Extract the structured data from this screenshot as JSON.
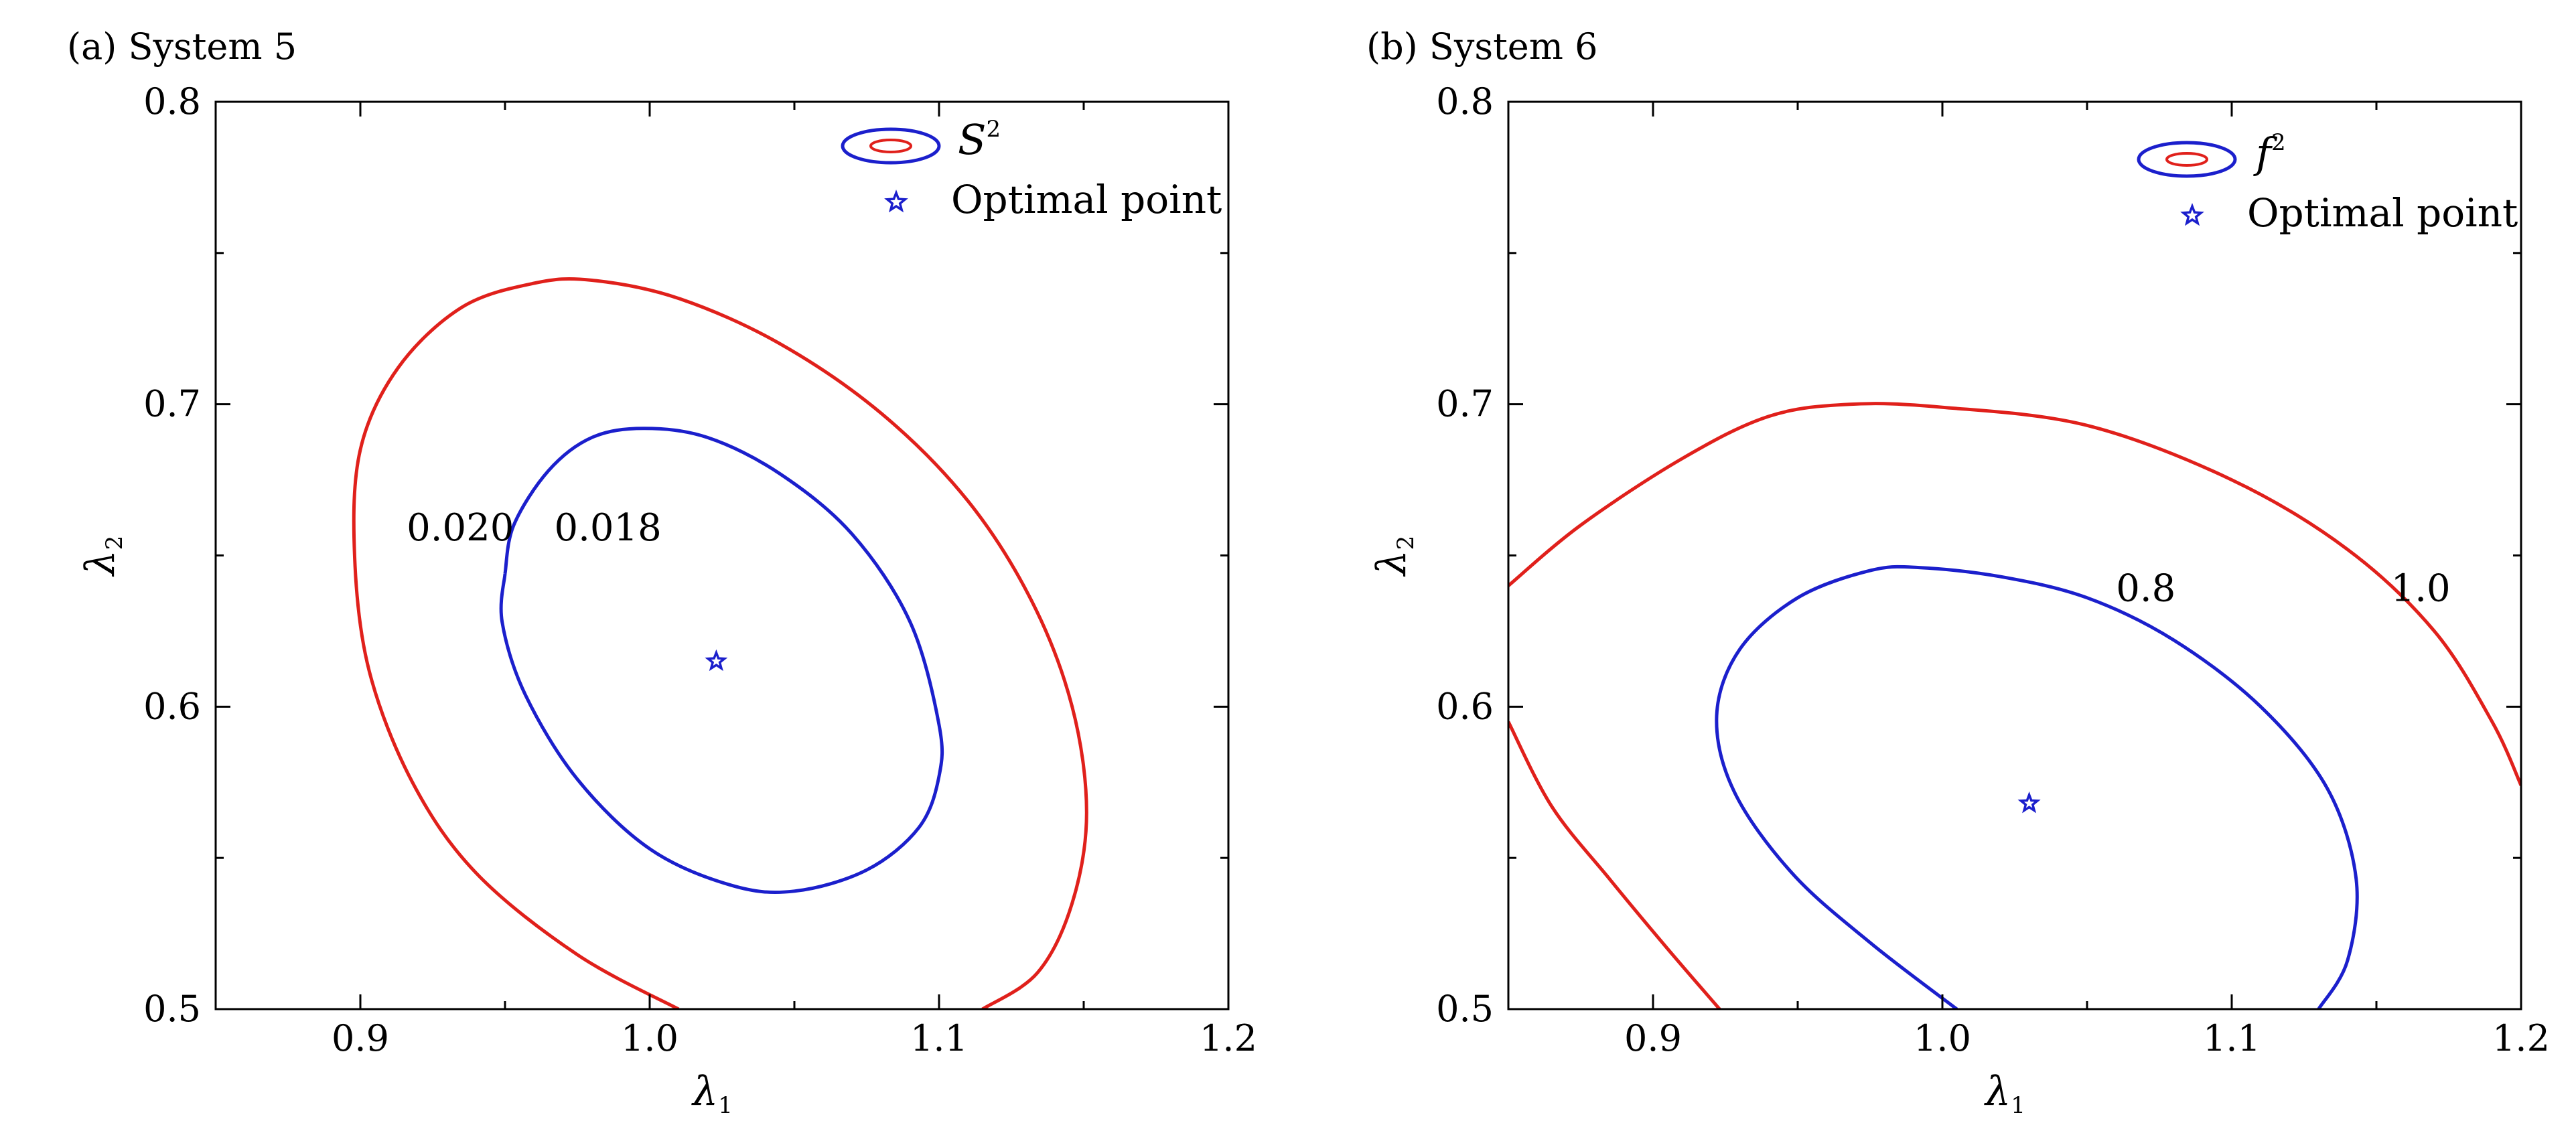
{
  "chart_data": [
    {
      "type": "contour",
      "panel_label": "(a)",
      "title": "System 5",
      "xlabel": "λ",
      "xlabel_sub": "1",
      "ylabel": "λ",
      "ylabel_sub": "2",
      "xlim": [
        0.85,
        1.2
      ],
      "ylim": [
        0.5,
        0.8
      ],
      "xticks": [
        0.9,
        1.0,
        1.1,
        1.2
      ],
      "xtick_labels": [
        "0.9",
        "1.0",
        "1.1",
        "1.2"
      ],
      "yticks": [
        0.5,
        0.6,
        0.7,
        0.8
      ],
      "ytick_labels": [
        "0.5",
        "0.6",
        "0.7",
        "0.8"
      ],
      "legend": {
        "position": "top-right",
        "contour_symbol": "S",
        "contour_symbol_sup": "2",
        "optimal_label": "Optimal point"
      },
      "optimal_point": {
        "x": 1.023,
        "y": 0.615
      },
      "contours": [
        {
          "level": "0.020",
          "color": "#e0201b",
          "label_at": {
            "x": 0.916,
            "y": 0.655
          },
          "points": [
            [
              1.01,
              0.5
            ],
            [
              0.975,
              0.518
            ],
            [
              0.94,
              0.545
            ],
            [
              0.918,
              0.575
            ],
            [
              0.903,
              0.612
            ],
            [
              0.898,
              0.65
            ],
            [
              0.9,
              0.685
            ],
            [
              0.913,
              0.712
            ],
            [
              0.935,
              0.732
            ],
            [
              0.96,
              0.74
            ],
            [
              0.98,
              0.741
            ],
            [
              1.01,
              0.735
            ],
            [
              1.045,
              0.72
            ],
            [
              1.08,
              0.697
            ],
            [
              1.11,
              0.668
            ],
            [
              1.132,
              0.635
            ],
            [
              1.146,
              0.6
            ],
            [
              1.151,
              0.565
            ],
            [
              1.146,
              0.535
            ],
            [
              1.134,
              0.512
            ],
            [
              1.115,
              0.5
            ]
          ]
        },
        {
          "level": "0.018",
          "color": "#1b1fcc",
          "label_at": {
            "x": 0.967,
            "y": 0.655
          },
          "points": [
            [
              0.95,
              0.644
            ],
            [
              0.953,
              0.66
            ],
            [
              0.965,
              0.678
            ],
            [
              0.98,
              0.689
            ],
            [
              0.998,
              0.692
            ],
            [
              1.02,
              0.689
            ],
            [
              1.045,
              0.677
            ],
            [
              1.07,
              0.657
            ],
            [
              1.09,
              0.628
            ],
            [
              1.1,
              0.594
            ],
            [
              1.1,
              0.577
            ],
            [
              1.093,
              0.56
            ],
            [
              1.075,
              0.546
            ],
            [
              1.05,
              0.539
            ],
            [
              1.028,
              0.541
            ],
            [
              1.0,
              0.553
            ],
            [
              0.975,
              0.576
            ],
            [
              0.957,
              0.604
            ],
            [
              0.949,
              0.628
            ],
            [
              0.95,
              0.644
            ]
          ]
        }
      ]
    },
    {
      "type": "contour",
      "panel_label": "(b)",
      "title": "System 6",
      "xlabel": "λ",
      "xlabel_sub": "1",
      "ylabel": "λ",
      "ylabel_sub": "2",
      "xlim": [
        0.85,
        1.2
      ],
      "ylim": [
        0.5,
        0.8
      ],
      "xticks": [
        0.9,
        1.0,
        1.1,
        1.2
      ],
      "xtick_labels": [
        "0.9",
        "1.0",
        "1.1",
        "1.2"
      ],
      "yticks": [
        0.5,
        0.6,
        0.7,
        0.8
      ],
      "ytick_labels": [
        "0.5",
        "0.6",
        "0.7",
        "0.8"
      ],
      "legend": {
        "position": "top-right",
        "contour_symbol": "f",
        "contour_symbol_sup": "2",
        "optimal_label": "Optimal point"
      },
      "optimal_point": {
        "x": 1.03,
        "y": 0.568
      },
      "contours": [
        {
          "level": "0.8",
          "color": "#1b1fcc",
          "label_at": {
            "x": 1.06,
            "y": 0.635
          },
          "points": [
            [
              1.005,
              0.5
            ],
            [
              0.975,
              0.522
            ],
            [
              0.948,
              0.545
            ],
            [
              0.928,
              0.572
            ],
            [
              0.922,
              0.597
            ],
            [
              0.93,
              0.619
            ],
            [
              0.95,
              0.636
            ],
            [
              0.975,
              0.645
            ],
            [
              0.992,
              0.646
            ],
            [
              1.02,
              0.643
            ],
            [
              1.05,
              0.636
            ],
            [
              1.08,
              0.622
            ],
            [
              1.11,
              0.6
            ],
            [
              1.133,
              0.573
            ],
            [
              1.143,
              0.543
            ],
            [
              1.14,
              0.516
            ],
            [
              1.13,
              0.5
            ]
          ]
        },
        {
          "level": "1.0",
          "color": "#e0201b",
          "label_at": {
            "x": 1.155,
            "y": 0.635
          },
          "points": [
            [
              0.85,
              0.64
            ],
            [
              0.875,
              0.66
            ],
            [
              0.91,
              0.682
            ],
            [
              0.94,
              0.696
            ],
            [
              0.968,
              0.7
            ],
            [
              1.0,
              0.699
            ],
            [
              1.05,
              0.693
            ],
            [
              1.1,
              0.675
            ],
            [
              1.14,
              0.652
            ],
            [
              1.17,
              0.625
            ],
            [
              1.19,
              0.595
            ],
            [
              1.2,
              0.574
            ]
          ]
        },
        {
          "level": "1.0",
          "color": "#e0201b",
          "unlabeled": true,
          "points": [
            [
              0.85,
              0.595
            ],
            [
              0.865,
              0.567
            ],
            [
              0.885,
              0.543
            ],
            [
              0.905,
              0.52
            ],
            [
              0.923,
              0.5
            ]
          ]
        }
      ]
    }
  ]
}
